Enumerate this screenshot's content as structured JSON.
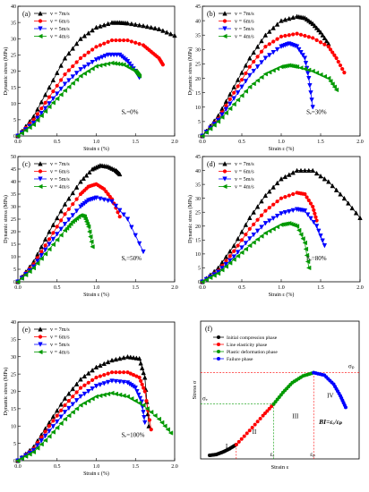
{
  "legend_labels": [
    "v = 7m/s",
    "v = 6m/s",
    "v = 5m/s",
    "v = 4m/s"
  ],
  "colors": {
    "v7": "#000000",
    "v6": "#ff0000",
    "v5": "#0000ff",
    "v4": "#009900",
    "axis": "#000000"
  },
  "chart_data": [
    {
      "panel": "(a)",
      "type": "line",
      "annotation": "Sₑ=0%",
      "xlabel": "Strain ε (%)",
      "ylabel": "Dynamic stress (MPa)",
      "xlim": [
        0,
        2.0
      ],
      "ylim": [
        0,
        40
      ],
      "xticks": [
        "0.0",
        "0.5",
        "1.0",
        "1.5",
        "2.0"
      ],
      "yticks": [
        "0",
        "5",
        "10",
        "15",
        "20",
        "25",
        "30",
        "35",
        "40"
      ],
      "legend": "top-left",
      "grid": false,
      "series": [
        {
          "name": "v = 7m/s",
          "color": "#000000",
          "x": [
            0,
            0.2,
            0.4,
            0.6,
            0.8,
            1.0,
            1.2,
            1.3,
            1.4,
            1.6,
            1.8,
            2.0
          ],
          "y": [
            0,
            6,
            15,
            24,
            30,
            33.5,
            35,
            35,
            34.8,
            34,
            33,
            31
          ]
        },
        {
          "name": "v = 6m/s",
          "color": "#ff0000",
          "x": [
            0,
            0.2,
            0.4,
            0.6,
            0.8,
            1.0,
            1.2,
            1.4,
            1.6,
            1.7,
            1.8,
            1.85
          ],
          "y": [
            0,
            5,
            12,
            19,
            24,
            27.5,
            29.5,
            29.5,
            28,
            26,
            24,
            22
          ]
        },
        {
          "name": "v = 5m/s",
          "color": "#0000ff",
          "x": [
            0,
            0.2,
            0.4,
            0.6,
            0.8,
            1.0,
            1.15,
            1.3,
            1.4,
            1.5,
            1.55
          ],
          "y": [
            0,
            4,
            10,
            16,
            20.5,
            23.5,
            25,
            25,
            23,
            20,
            18
          ]
        },
        {
          "name": "v = 4m/s",
          "color": "#009900",
          "x": [
            0,
            0.2,
            0.4,
            0.6,
            0.8,
            1.0,
            1.2,
            1.35,
            1.5,
            1.55
          ],
          "y": [
            0,
            3.5,
            9,
            14,
            18.5,
            21.5,
            22.5,
            22,
            20,
            18.5
          ]
        }
      ]
    },
    {
      "panel": "(b)",
      "type": "line",
      "annotation": "Sₑ=30%",
      "xlabel": "Strain ε (%)",
      "ylabel": "Dynamic stress (MPa)",
      "xlim": [
        0,
        2.0
      ],
      "ylim": [
        0,
        45
      ],
      "xticks": [
        "0.0",
        "0.5",
        "1.0",
        "1.5",
        "2.0"
      ],
      "yticks": [
        "0",
        "5",
        "10",
        "15",
        "20",
        "25",
        "30",
        "35",
        "40",
        "45"
      ],
      "legend": "top-left",
      "grid": false,
      "series": [
        {
          "name": "v = 7m/s",
          "color": "#000000",
          "x": [
            0,
            0.2,
            0.4,
            0.6,
            0.8,
            1.0,
            1.2,
            1.3,
            1.4,
            1.5,
            1.6
          ],
          "y": [
            0,
            7,
            17,
            27,
            35,
            40,
            41.5,
            41,
            39,
            36,
            32
          ]
        },
        {
          "name": "v = 6m/s",
          "color": "#ff0000",
          "x": [
            0,
            0.2,
            0.4,
            0.6,
            0.8,
            1.0,
            1.2,
            1.4,
            1.6,
            1.7,
            1.8
          ],
          "y": [
            0,
            6,
            15,
            24,
            31,
            34.5,
            35.5,
            34,
            31,
            27,
            22
          ]
        },
        {
          "name": "v = 5m/s",
          "color": "#0000ff",
          "x": [
            0,
            0.2,
            0.4,
            0.6,
            0.8,
            1.0,
            1.1,
            1.2,
            1.3,
            1.35,
            1.4
          ],
          "y": [
            0,
            5.5,
            13,
            21,
            27,
            31,
            32,
            31,
            27,
            20,
            10
          ]
        },
        {
          "name": "v = 4m/s",
          "color": "#009900",
          "x": [
            0,
            0.2,
            0.4,
            0.6,
            0.8,
            1.0,
            1.1,
            1.2,
            1.4,
            1.6,
            1.7
          ],
          "y": [
            0,
            5,
            11,
            17,
            21.5,
            24,
            24.5,
            24,
            22.5,
            20,
            16
          ]
        }
      ]
    },
    {
      "panel": "(c)",
      "type": "line",
      "annotation": "Sₑ=50%",
      "xlabel": "Strain ε (%)",
      "ylabel": "Dynamic stress (MPa)",
      "xlim": [
        0,
        2.0
      ],
      "ylim": [
        0,
        50
      ],
      "xticks": [
        "0.0",
        "0.5",
        "1.0",
        "1.5",
        "2.0"
      ],
      "yticks": [
        "0",
        "5",
        "10",
        "15",
        "20",
        "25",
        "30",
        "35",
        "40",
        "45",
        "50"
      ],
      "legend": "top-left",
      "grid": false,
      "series": [
        {
          "name": "v = 7m/s",
          "color": "#000000",
          "x": [
            0,
            0.2,
            0.4,
            0.6,
            0.8,
            0.95,
            1.05,
            1.15,
            1.25,
            1.3
          ],
          "y": [
            0,
            8,
            20,
            31,
            40,
            45,
            46.5,
            46,
            44.5,
            43
          ]
        },
        {
          "name": "v = 6m/s",
          "color": "#ff0000",
          "x": [
            0,
            0.2,
            0.4,
            0.6,
            0.8,
            0.9,
            1.0,
            1.1,
            1.2,
            1.3
          ],
          "y": [
            0,
            7,
            17,
            27,
            35,
            38,
            39,
            37,
            33,
            26
          ]
        },
        {
          "name": "v = 5m/s",
          "color": "#0000ff",
          "x": [
            0,
            0.2,
            0.4,
            0.6,
            0.8,
            0.9,
            1.0,
            1.2,
            1.4,
            1.6
          ],
          "y": [
            0,
            6,
            15,
            23,
            30,
            32.5,
            33.5,
            32,
            25,
            12
          ]
        },
        {
          "name": "v = 4m/s",
          "color": "#009900",
          "x": [
            0,
            0.2,
            0.4,
            0.6,
            0.7,
            0.8,
            0.85,
            0.9,
            0.95
          ],
          "y": [
            0,
            5.5,
            13,
            20.5,
            24,
            26.5,
            26,
            22,
            14
          ]
        }
      ]
    },
    {
      "panel": "(d)",
      "type": "line",
      "annotation": "Sₑ=80%",
      "xlabel": "Strain ε (%)",
      "ylabel": "Dynamic stress (MPa)",
      "xlim": [
        0,
        2.0
      ],
      "ylim": [
        0,
        45
      ],
      "xticks": [
        "0.0",
        "0.5",
        "1.0",
        "1.5",
        "2.0"
      ],
      "yticks": [
        "0",
        "5",
        "10",
        "15",
        "20",
        "25",
        "30",
        "35",
        "40",
        "45"
      ],
      "legend": "top-left",
      "grid": false,
      "series": [
        {
          "name": "v = 7m/s",
          "color": "#000000",
          "x": [
            0,
            0.2,
            0.4,
            0.6,
            0.8,
            1.0,
            1.2,
            1.4,
            1.6,
            1.8,
            2.0
          ],
          "y": [
            0,
            5,
            13,
            23,
            31,
            37,
            40,
            40,
            36,
            30,
            23
          ]
        },
        {
          "name": "v = 6m/s",
          "color": "#ff0000",
          "x": [
            0,
            0.2,
            0.4,
            0.6,
            0.8,
            1.0,
            1.2,
            1.3,
            1.4,
            1.45
          ],
          "y": [
            0,
            4,
            11,
            19,
            25.5,
            30,
            32,
            31.5,
            27,
            22
          ]
        },
        {
          "name": "v = 5m/s",
          "color": "#0000ff",
          "x": [
            0,
            0.2,
            0.4,
            0.6,
            0.8,
            1.0,
            1.2,
            1.3,
            1.45,
            1.55
          ],
          "y": [
            0,
            3.5,
            9,
            15.5,
            21,
            24.5,
            26,
            25.5,
            20,
            13
          ]
        },
        {
          "name": "v = 4m/s",
          "color": "#009900",
          "x": [
            0,
            0.2,
            0.4,
            0.6,
            0.8,
            1.0,
            1.1,
            1.2,
            1.3,
            1.35
          ],
          "y": [
            0,
            3,
            8,
            13,
            17.5,
            20.5,
            21,
            20,
            14,
            5
          ]
        }
      ]
    },
    {
      "panel": "(e)",
      "type": "line",
      "annotation": "Sₑ=100%",
      "xlabel": "Strain ε (%)",
      "ylabel": "Dynamic stress (MPa)",
      "xlim": [
        0,
        2.0
      ],
      "ylim": [
        0,
        40
      ],
      "xticks": [
        "0.0",
        "0.5",
        "1.0",
        "1.5",
        "2.0"
      ],
      "yticks": [
        "0",
        "5",
        "10",
        "15",
        "20",
        "25",
        "30",
        "35",
        "40"
      ],
      "legend": "top-left",
      "grid": false,
      "series": [
        {
          "name": "v = 7m/s",
          "color": "#000000",
          "x": [
            0,
            0.2,
            0.4,
            0.6,
            0.8,
            1.0,
            1.2,
            1.4,
            1.55,
            1.62,
            1.67
          ],
          "y": [
            0,
            4,
            11,
            18,
            23.5,
            27,
            29,
            30,
            29.5,
            24,
            10
          ]
        },
        {
          "name": "v = 6m/s",
          "color": "#ff0000",
          "x": [
            0,
            0.2,
            0.4,
            0.6,
            0.8,
            1.0,
            1.2,
            1.4,
            1.55,
            1.62,
            1.7
          ],
          "y": [
            0,
            3.5,
            10,
            16,
            21,
            24,
            25.5,
            25.5,
            24,
            20,
            9
          ]
        },
        {
          "name": "v = 5m/s",
          "color": "#0000ff",
          "x": [
            0,
            0.2,
            0.4,
            0.6,
            0.8,
            1.0,
            1.2,
            1.4,
            1.5,
            1.58,
            1.62
          ],
          "y": [
            0,
            3,
            8.5,
            14,
            18.5,
            21.5,
            23,
            22.5,
            21,
            17,
            11
          ]
        },
        {
          "name": "v = 4m/s",
          "color": "#009900",
          "x": [
            0,
            0.2,
            0.4,
            0.6,
            0.8,
            1.0,
            1.2,
            1.4,
            1.6,
            1.8,
            1.95
          ],
          "y": [
            0,
            2.5,
            7,
            12,
            16,
            18.5,
            19.5,
            18.5,
            16,
            12,
            8
          ]
        }
      ]
    },
    {
      "panel": "(f)",
      "type": "line",
      "xlabel": "Strain ε",
      "ylabel": "Stress σ",
      "legend": "top-left",
      "grid": false,
      "legend_entries": [
        "Initial compression phase",
        "Line elasticity phase",
        "Plastic deformation phase",
        "Failure phase"
      ],
      "phase_labels": [
        "I",
        "II",
        "III",
        "IV"
      ],
      "marker_labels": {
        "sigma_p": "σₚ",
        "sigma_e": "σₑ",
        "eps_e": "εₑ",
        "eps_p": "εₚ"
      },
      "formula": "BI=εₑ/εₚ",
      "series": [
        {
          "name": "Initial compression phase",
          "color": "#000000",
          "x": [
            0,
            0.05,
            0.1,
            0.15,
            0.2
          ],
          "y": [
            0,
            0.01,
            0.04,
            0.08,
            0.13
          ]
        },
        {
          "name": "Line elasticity phase",
          "color": "#ff0000",
          "x": [
            0.2,
            0.3,
            0.4,
            0.48
          ],
          "y": [
            0.13,
            0.3,
            0.48,
            0.62
          ]
        },
        {
          "name": "Plastic deformation phase",
          "color": "#009900",
          "x": [
            0.48,
            0.55,
            0.62,
            0.7,
            0.78
          ],
          "y": [
            0.62,
            0.76,
            0.88,
            0.96,
            1.0
          ]
        },
        {
          "name": "Failure phase",
          "color": "#0000ff",
          "x": [
            0.78,
            0.86,
            0.93,
            0.98,
            1.02
          ],
          "y": [
            1.0,
            0.97,
            0.86,
            0.72,
            0.58
          ]
        }
      ]
    }
  ]
}
